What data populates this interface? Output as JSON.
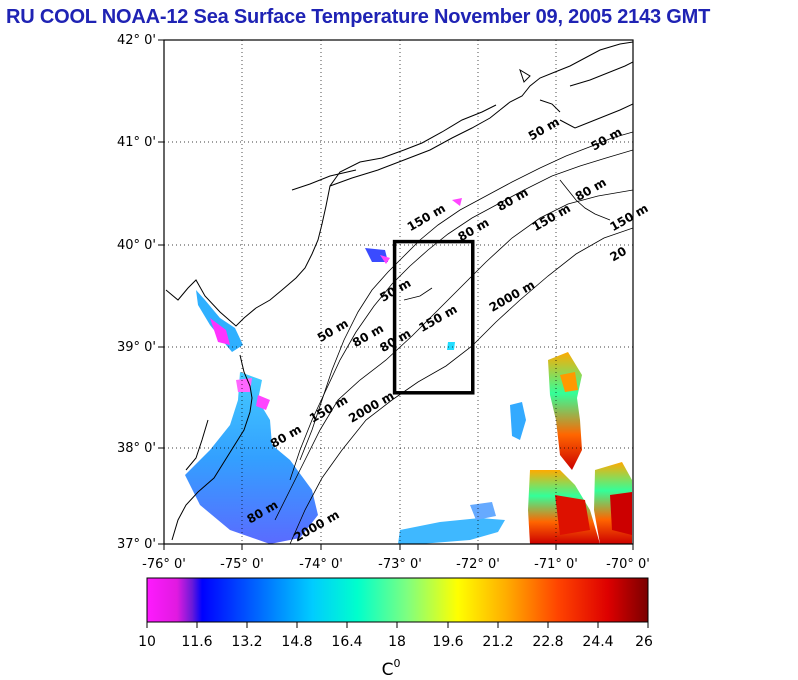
{
  "title": "RU COOL  NOAA-12 Sea Surface Temperature November 09, 2005 2143 GMT",
  "colors": {
    "title": "#1f23b4",
    "box": "#000000",
    "land": "#ffffff"
  },
  "map": {
    "lat_labels": [
      "42° 0'",
      "41° 0'",
      "40° 0'",
      "39° 0'",
      "38° 0'",
      "37° 0'"
    ],
    "lon_labels": [
      "-76° 0'",
      "-75° 0'",
      "-74° 0'",
      "-73° 0'",
      "-72° 0'",
      "-71° 0'",
      "-70° 0'"
    ],
    "lat_range": [
      37,
      42
    ],
    "lon_range": [
      -76,
      -70
    ],
    "grid": true,
    "study_box": {
      "lon_min": -73.05,
      "lon_max": -72.05,
      "lat_min": 38.5,
      "lat_max": 40.0
    },
    "contour_labels": [
      {
        "text": "50 m",
        "lon": -71.3,
        "lat": 41.0
      },
      {
        "text": "50 m",
        "lon": -70.5,
        "lat": 40.9
      },
      {
        "text": "80 m",
        "lon": -71.7,
        "lat": 40.3
      },
      {
        "text": "80 m",
        "lon": -70.7,
        "lat": 40.4
      },
      {
        "text": "150 m",
        "lon": -70.2,
        "lat": 40.1
      },
      {
        "text": "150 m",
        "lon": -71.25,
        "lat": 40.1
      },
      {
        "text": "80 m",
        "lon": -72.2,
        "lat": 40.0
      },
      {
        "text": "150 m",
        "lon": -72.85,
        "lat": 40.1
      },
      {
        "text": "50 m",
        "lon": -73.2,
        "lat": 39.4
      },
      {
        "text": "150 m",
        "lon": -72.7,
        "lat": 39.1
      },
      {
        "text": "80 m",
        "lon": -73.2,
        "lat": 38.9
      },
      {
        "text": "50 m",
        "lon": -74.0,
        "lat": 39.0
      },
      {
        "text": "80 m",
        "lon": -73.55,
        "lat": 38.95
      },
      {
        "text": "2000 m",
        "lon": -71.8,
        "lat": 39.3
      },
      {
        "text": "2000 m",
        "lon": -73.6,
        "lat": 38.2
      },
      {
        "text": "150 m",
        "lon": -74.1,
        "lat": 38.2
      },
      {
        "text": "80 m",
        "lon": -74.6,
        "lat": 37.95
      },
      {
        "text": "80 m",
        "lon": -74.9,
        "lat": 37.2
      },
      {
        "text": "2000 m",
        "lon": -74.3,
        "lat": 37.0
      },
      {
        "text": "20",
        "lon": -70.1,
        "lat": 39.8
      }
    ]
  },
  "colorbar": {
    "labels": [
      "10",
      "11.6",
      "13.2",
      "14.8",
      "16.4",
      "18",
      "19.6",
      "21.2",
      "22.8",
      "24.4",
      "26"
    ],
    "min": 10,
    "max": 26,
    "unit": "C"
  }
}
